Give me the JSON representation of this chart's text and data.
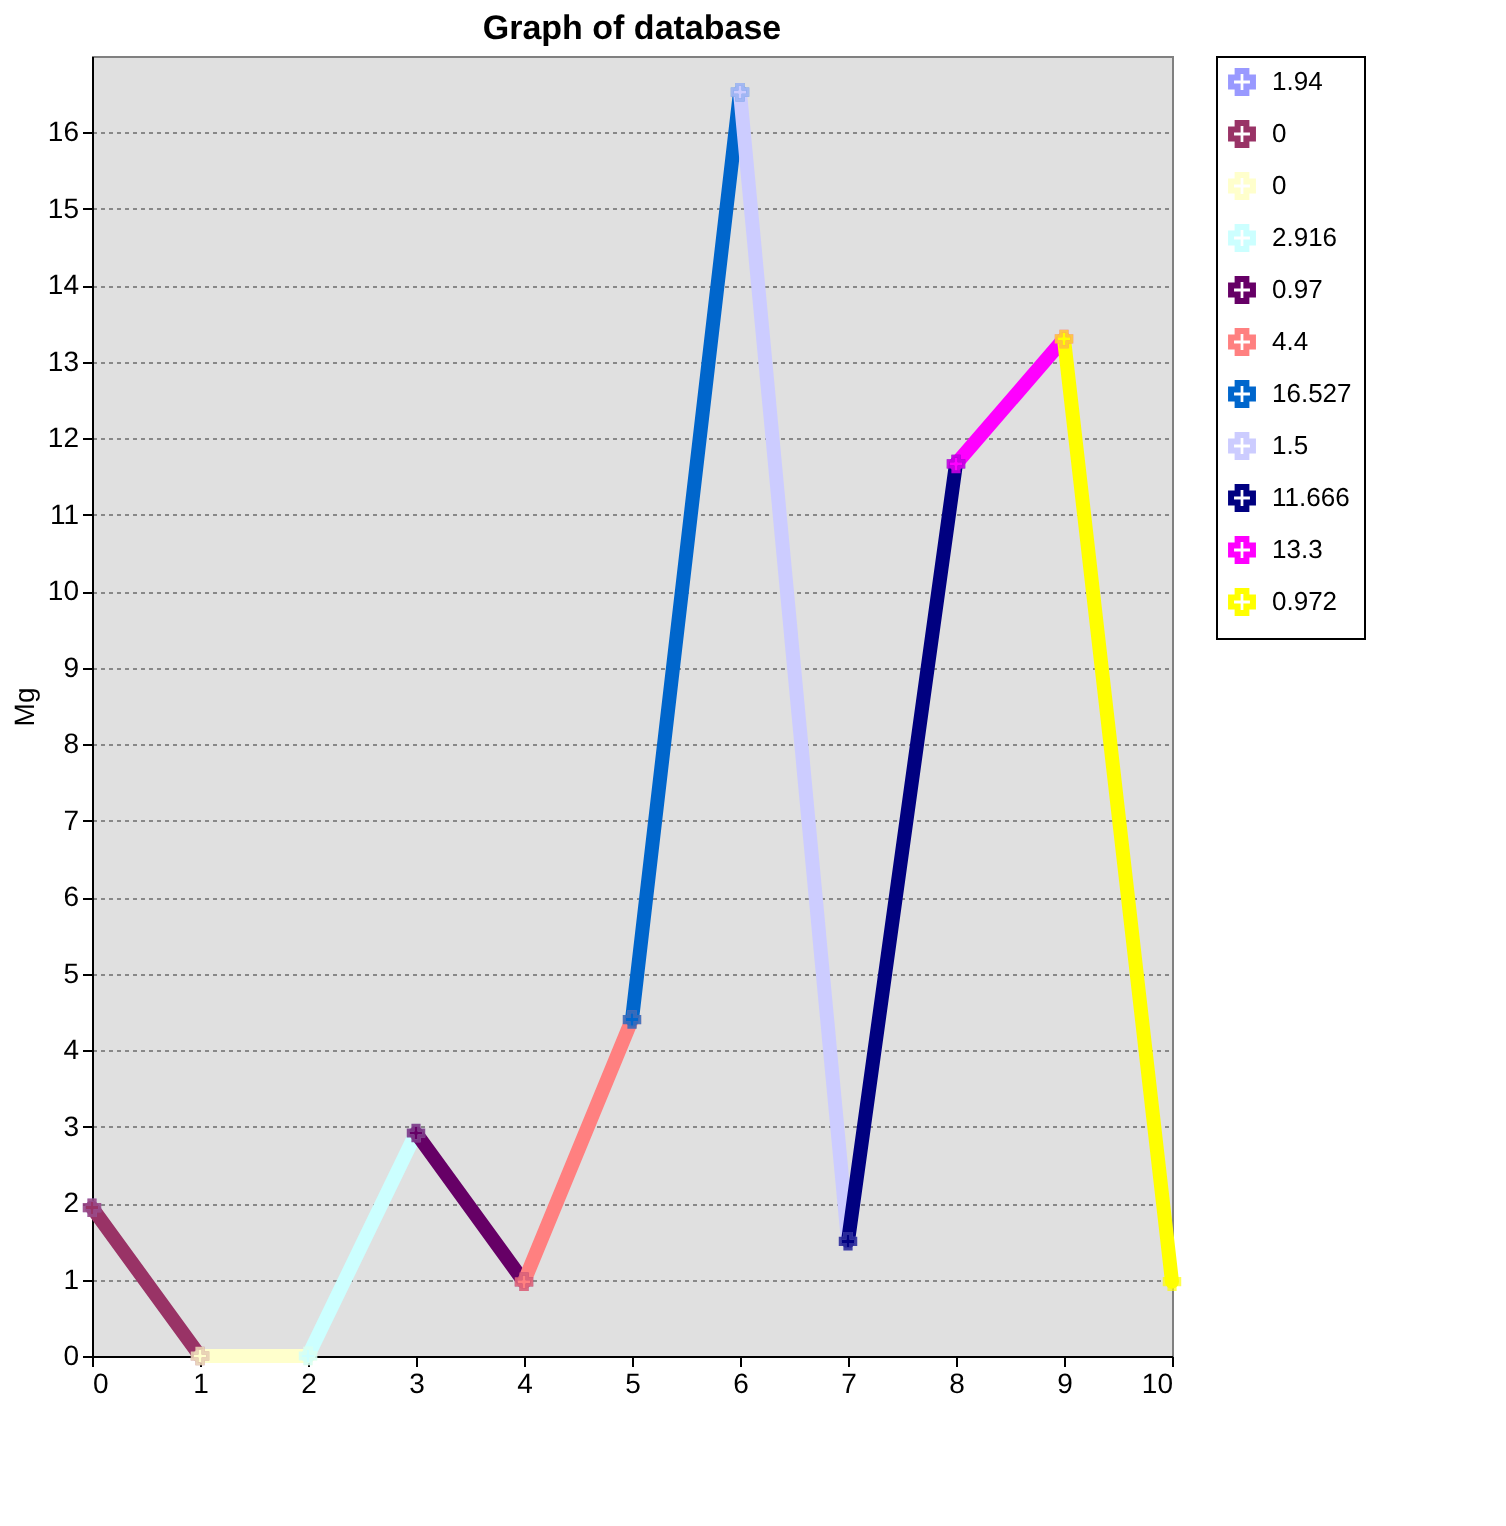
{
  "chart_data": {
    "type": "line",
    "title": "Graph of database",
    "ylabel": "Mg",
    "x": [
      0,
      1,
      2,
      3,
      4,
      5,
      6,
      7,
      8,
      9,
      10
    ],
    "series": [
      {
        "name": "1.94",
        "color": "#9999ff",
        "values": [
          1.94,
          null,
          null,
          null,
          null,
          null,
          null,
          null,
          null,
          null,
          null
        ]
      },
      {
        "name": "0",
        "color": "#993366",
        "values": [
          1.94,
          0,
          null,
          null,
          null,
          null,
          null,
          null,
          null,
          null,
          null
        ]
      },
      {
        "name": "0",
        "color": "#ffffcc",
        "values": [
          null,
          0,
          0,
          null,
          null,
          null,
          null,
          null,
          null,
          null,
          null
        ]
      },
      {
        "name": "2.916",
        "color": "#ccffff",
        "values": [
          null,
          null,
          0,
          2.916,
          null,
          null,
          null,
          null,
          null,
          null,
          null
        ]
      },
      {
        "name": "0.97",
        "color": "#660066",
        "values": [
          null,
          null,
          null,
          2.916,
          0.97,
          null,
          null,
          null,
          null,
          null,
          null
        ]
      },
      {
        "name": "4.4",
        "color": "#ff8080",
        "values": [
          null,
          null,
          null,
          null,
          0.97,
          4.4,
          null,
          null,
          null,
          null,
          null
        ]
      },
      {
        "name": "16.527",
        "color": "#0066cc",
        "values": [
          null,
          null,
          null,
          null,
          null,
          4.4,
          16.527,
          null,
          null,
          null,
          null
        ]
      },
      {
        "name": "1.5",
        "color": "#ccccff",
        "values": [
          null,
          null,
          null,
          null,
          null,
          null,
          16.527,
          1.5,
          null,
          null,
          null
        ]
      },
      {
        "name": "11.666",
        "color": "#000080",
        "values": [
          null,
          null,
          null,
          null,
          null,
          null,
          null,
          1.5,
          11.666,
          null,
          null
        ]
      },
      {
        "name": "13.3",
        "color": "#ff00ff",
        "values": [
          null,
          null,
          null,
          null,
          null,
          null,
          null,
          null,
          11.666,
          13.3,
          null
        ]
      },
      {
        "name": "0.972",
        "color": "#ffff00",
        "values": [
          null,
          null,
          null,
          null,
          null,
          null,
          null,
          null,
          null,
          13.3,
          0.972
        ]
      }
    ],
    "xlim": [
      0,
      10
    ],
    "xticks": [
      0,
      1,
      2,
      3,
      4,
      5,
      6,
      7,
      8,
      9,
      10
    ],
    "ylim": [
      0,
      17
    ],
    "yticks": [
      0,
      1,
      2,
      3,
      4,
      5,
      6,
      7,
      8,
      9,
      10,
      11,
      12,
      13,
      14,
      15,
      16
    ],
    "grid": "y",
    "legend": "top right",
    "marker": "cross",
    "line_style": "solid"
  }
}
